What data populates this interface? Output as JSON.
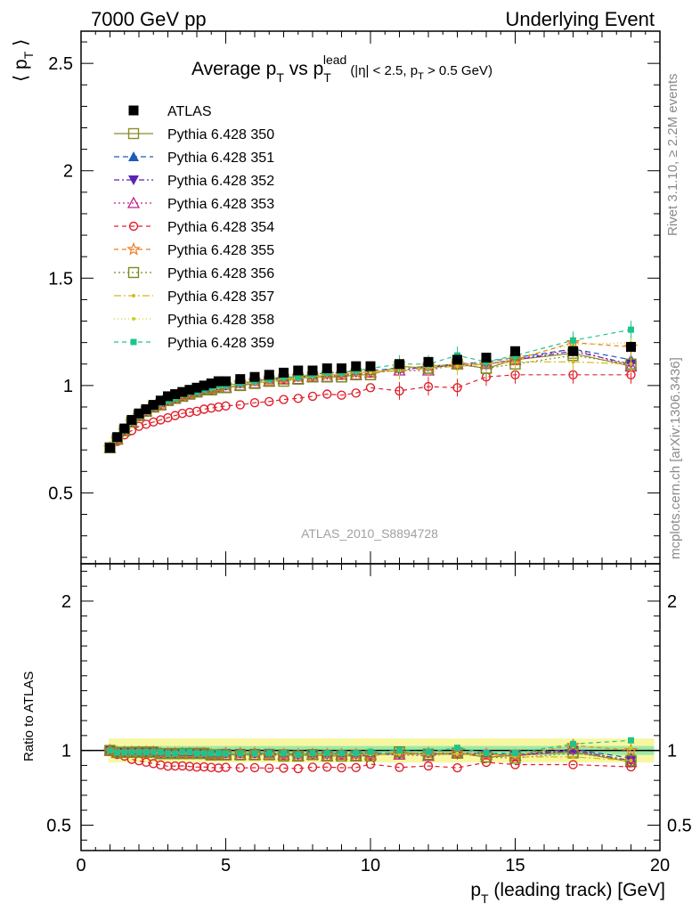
{
  "header": {
    "left": "7000 GeV pp",
    "right": "Underlying Event"
  },
  "side_labels": {
    "rivet": "Rivet 3.1.10, ≥ 2.2M events",
    "mcplots": "mcplots.cern.ch [arXiv:1306.3436]"
  },
  "watermark": "ATLAS_2010_S8894728",
  "chart_data": [
    {
      "type": "scatter",
      "panel": "main",
      "title": "Average pT vs pT lead (|η| < 2.5, pT > 0.5 GeV)",
      "title_parts": {
        "a": "Average p",
        "b": "T",
        "c": " vs p",
        "d": "T",
        "e": "lead",
        "f": "(|η| < 2.5, p",
        "g": "T",
        "h": " > 0.5 GeV)"
      },
      "ylabel": "⟨ pT ⟩",
      "ylabel_parts": {
        "a": "⟨ p",
        "b": "T",
        "c": " ⟩"
      },
      "xlabel": "pT (leading track) [GeV]",
      "xlabel_parts": {
        "a": "p",
        "b": "T",
        "c": " (leading track) [GeV]"
      },
      "xlim": [
        0,
        20
      ],
      "ylim": [
        0.17,
        2.65
      ],
      "y_ticks": [
        "0.5",
        "1",
        "1.5",
        "2",
        "2.5"
      ],
      "x_ticks": [
        "0",
        "5",
        "10",
        "15",
        "20"
      ],
      "x": [
        1.0,
        1.25,
        1.5,
        1.75,
        2.0,
        2.25,
        2.5,
        2.75,
        3.0,
        3.25,
        3.5,
        3.75,
        4.0,
        4.25,
        4.5,
        4.75,
        5.0,
        5.5,
        6.0,
        6.5,
        7.0,
        7.5,
        8.0,
        8.5,
        9.0,
        9.5,
        10.0,
        11.0,
        12.0,
        13.0,
        14.0,
        15.0,
        17.0,
        19.0
      ],
      "series": [
        {
          "name": "ATLAS",
          "color": "#000000",
          "marker": "filled-square",
          "dash": "none",
          "values": [
            0.71,
            0.76,
            0.8,
            0.84,
            0.87,
            0.89,
            0.91,
            0.93,
            0.95,
            0.96,
            0.97,
            0.98,
            0.99,
            1.0,
            1.01,
            1.02,
            1.02,
            1.03,
            1.04,
            1.05,
            1.06,
            1.07,
            1.07,
            1.08,
            1.08,
            1.09,
            1.09,
            1.1,
            1.11,
            1.12,
            1.13,
            1.16,
            1.16,
            1.18
          ]
        },
        {
          "name": "Pythia 6.428 350",
          "color": "#8f8a2a",
          "marker": "open-square",
          "dash": "solid",
          "values": [
            0.71,
            0.75,
            0.79,
            0.83,
            0.86,
            0.88,
            0.9,
            0.91,
            0.93,
            0.94,
            0.95,
            0.96,
            0.97,
            0.98,
            0.98,
            0.99,
            0.99,
            1.0,
            1.01,
            1.02,
            1.03,
            1.03,
            1.04,
            1.04,
            1.04,
            1.05,
            1.05,
            1.09,
            1.08,
            1.1,
            1.08,
            1.12,
            1.15,
            1.09
          ]
        },
        {
          "name": "Pythia 6.428 351",
          "color": "#1c5cb8",
          "marker": "filled-triangle",
          "dash": "6,4",
          "values": [
            0.71,
            0.75,
            0.79,
            0.83,
            0.86,
            0.88,
            0.9,
            0.92,
            0.93,
            0.94,
            0.96,
            0.97,
            0.97,
            0.98,
            0.99,
            1.0,
            1.0,
            1.01,
            1.02,
            1.03,
            1.04,
            1.04,
            1.05,
            1.06,
            1.06,
            1.07,
            1.07,
            1.08,
            1.09,
            1.1,
            1.11,
            1.13,
            1.17,
            1.12
          ]
        },
        {
          "name": "Pythia 6.428 352",
          "color": "#5a23b8",
          "marker": "filled-triangle-down",
          "dash": "6,3,2,3",
          "values": [
            0.71,
            0.75,
            0.79,
            0.83,
            0.86,
            0.88,
            0.9,
            0.91,
            0.93,
            0.94,
            0.95,
            0.96,
            0.97,
            0.98,
            0.98,
            0.99,
            1.0,
            1.01,
            1.02,
            1.03,
            1.03,
            1.04,
            1.04,
            1.05,
            1.05,
            1.06,
            1.06,
            1.07,
            1.09,
            1.09,
            1.1,
            1.12,
            1.16,
            1.1
          ]
        },
        {
          "name": "Pythia 6.428 353",
          "color": "#c0208a",
          "marker": "open-triangle",
          "dash": "2,3",
          "values": [
            0.71,
            0.75,
            0.79,
            0.83,
            0.86,
            0.88,
            0.9,
            0.91,
            0.93,
            0.94,
            0.95,
            0.96,
            0.97,
            0.98,
            0.98,
            0.99,
            0.99,
            1.0,
            1.01,
            1.02,
            1.03,
            1.03,
            1.04,
            1.04,
            1.05,
            1.05,
            1.06,
            1.07,
            1.07,
            1.1,
            1.1,
            1.12,
            1.17,
            1.09
          ]
        },
        {
          "name": "Pythia 6.428 354",
          "color": "#e0202c",
          "marker": "open-circle",
          "dash": "5,4",
          "values": [
            0.71,
            0.74,
            0.77,
            0.79,
            0.81,
            0.82,
            0.83,
            0.84,
            0.85,
            0.86,
            0.87,
            0.875,
            0.88,
            0.89,
            0.895,
            0.9,
            0.905,
            0.91,
            0.92,
            0.925,
            0.935,
            0.94,
            0.95,
            0.96,
            0.955,
            0.965,
            0.99,
            0.975,
            0.995,
            0.99,
            1.04,
            1.05,
            1.05,
            1.05
          ]
        },
        {
          "name": "Pythia 6.428 355",
          "color": "#f07a1e",
          "marker": "open-star",
          "dash": "5,4",
          "values": [
            0.71,
            0.75,
            0.79,
            0.83,
            0.86,
            0.88,
            0.9,
            0.91,
            0.93,
            0.94,
            0.95,
            0.96,
            0.97,
            0.98,
            0.98,
            0.99,
            1.0,
            1.01,
            1.02,
            1.02,
            1.03,
            1.04,
            1.04,
            1.05,
            1.05,
            1.06,
            1.06,
            1.08,
            1.09,
            1.1,
            1.1,
            1.12,
            1.2,
            1.18
          ]
        },
        {
          "name": "Pythia 6.428 356",
          "color": "#7a8a1e",
          "marker": "open-square",
          "dash": "2,3",
          "values": [
            0.71,
            0.75,
            0.79,
            0.83,
            0.86,
            0.88,
            0.9,
            0.91,
            0.93,
            0.94,
            0.95,
            0.96,
            0.97,
            0.98,
            0.98,
            0.99,
            0.99,
            1.0,
            1.01,
            1.02,
            1.02,
            1.03,
            1.04,
            1.04,
            1.04,
            1.05,
            1.05,
            1.09,
            1.08,
            1.1,
            1.08,
            1.1,
            1.14,
            1.1
          ]
        },
        {
          "name": "Pythia 6.428 357",
          "color": "#d8b81a",
          "marker": "dot",
          "dash": "8,3,2,3",
          "values": [
            0.71,
            0.75,
            0.79,
            0.83,
            0.86,
            0.88,
            0.9,
            0.91,
            0.93,
            0.94,
            0.95,
            0.96,
            0.97,
            0.98,
            0.98,
            0.99,
            1.0,
            1.01,
            1.01,
            1.02,
            1.03,
            1.03,
            1.04,
            1.05,
            1.05,
            1.06,
            1.06,
            1.07,
            1.08,
            1.09,
            1.1,
            1.11,
            1.11,
            1.1
          ]
        },
        {
          "name": "Pythia 6.428 358",
          "color": "#c8d21e",
          "marker": "dot",
          "dash": "1,3",
          "values": [
            0.71,
            0.75,
            0.79,
            0.83,
            0.86,
            0.88,
            0.9,
            0.91,
            0.93,
            0.94,
            0.95,
            0.96,
            0.97,
            0.98,
            0.98,
            0.99,
            1.0,
            1.01,
            1.02,
            1.02,
            1.03,
            1.04,
            1.04,
            1.05,
            1.05,
            1.06,
            1.06,
            1.08,
            1.09,
            1.1,
            1.11,
            1.13,
            1.19,
            1.2
          ]
        },
        {
          "name": "Pythia 6.428 359",
          "color": "#1ec48c",
          "marker": "filled-square-small",
          "dash": "5,4",
          "values": [
            0.71,
            0.75,
            0.79,
            0.83,
            0.86,
            0.88,
            0.9,
            0.92,
            0.93,
            0.94,
            0.96,
            0.97,
            0.97,
            0.98,
            0.99,
            1.0,
            1.0,
            1.01,
            1.02,
            1.03,
            1.04,
            1.04,
            1.05,
            1.06,
            1.06,
            1.07,
            1.08,
            1.1,
            1.1,
            1.14,
            1.11,
            1.14,
            1.21,
            1.26
          ]
        }
      ]
    },
    {
      "type": "line",
      "panel": "ratio",
      "ylabel": "Ratio to ATLAS",
      "xlabel": "pT (leading track) [GeV]",
      "xlim": [
        0,
        20
      ],
      "ylim": [
        0.33,
        2.25
      ],
      "y_ticks": [
        "0.5",
        "1",
        "2"
      ],
      "x_ticks": [
        "0",
        "5",
        "10",
        "15",
        "20"
      ],
      "reference": 1.0,
      "uncertainty_band": {
        "stat": 0.03,
        "total_low_pt": 0.08,
        "total_high_pt": 0.07
      },
      "series_note": "ratios = each Pythia series divided by ATLAS"
    }
  ]
}
